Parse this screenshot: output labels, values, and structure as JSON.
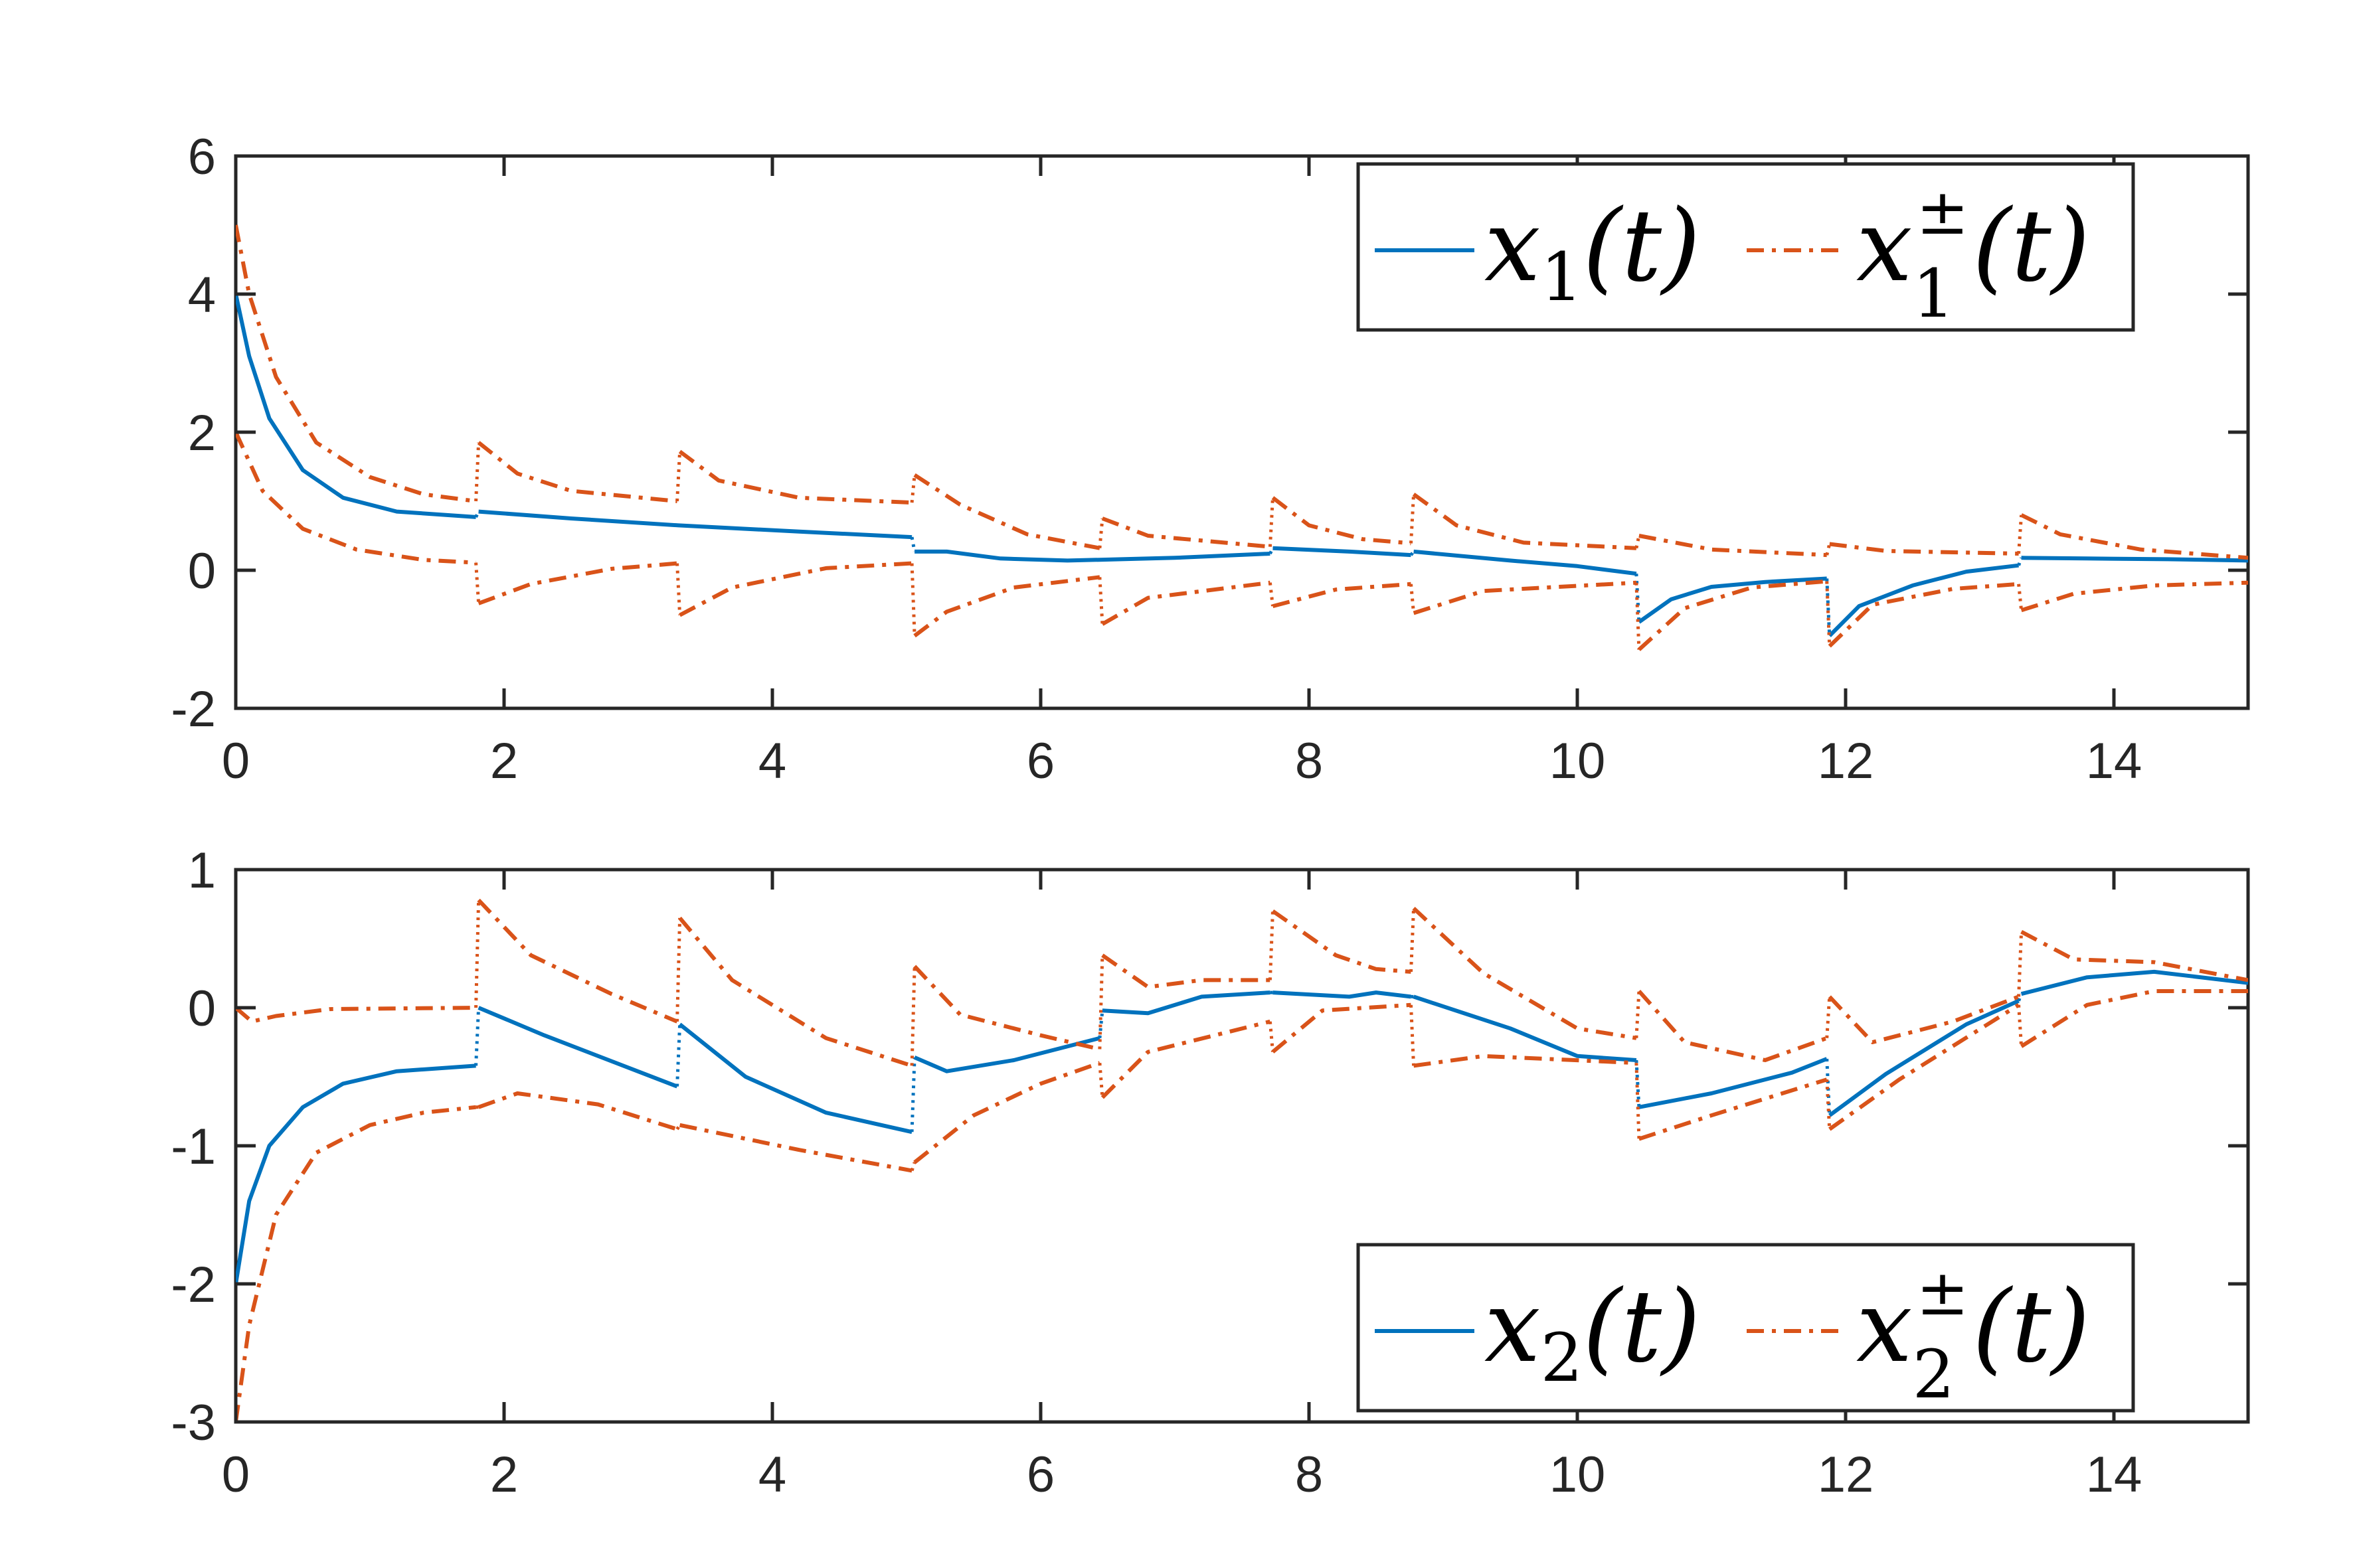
{
  "colors": {
    "state": "#0072BD",
    "bounds": "#D95319",
    "axes": "#262626",
    "background": "#ffffff"
  },
  "chart_data": [
    {
      "type": "line",
      "xlim": [
        0,
        15
      ],
      "ylim": [
        -2,
        6
      ],
      "xticks": [
        "0",
        "2",
        "4",
        "6",
        "8",
        "10",
        "12",
        "14"
      ],
      "yticks": [
        "-2",
        "0",
        "2",
        "4",
        "6"
      ],
      "legend": {
        "position": "top-right",
        "entries": [
          {
            "base": "x",
            "sub": "1",
            "sup": "",
            "arg": "(t)",
            "style": "solid"
          },
          {
            "base": "x",
            "sub": "1",
            "sup": "±",
            "arg": "(t)",
            "style": "dashdot"
          }
        ]
      },
      "jump_times": [
        1.8,
        3.3,
        5.05,
        6.45,
        7.72,
        8.77,
        10.45,
        11.87,
        13.3
      ],
      "series": [
        {
          "role": "state",
          "style": "solid",
          "points": [
            [
              0,
              4
            ],
            [
              0.1,
              3.1
            ],
            [
              0.25,
              2.2
            ],
            [
              0.5,
              1.45
            ],
            [
              0.8,
              1.05
            ],
            [
              1.2,
              0.85
            ],
            [
              1.79,
              0.77
            ],
            [
              1.81,
              0.85
            ],
            [
              2.5,
              0.75
            ],
            [
              3.3,
              0.65
            ],
            [
              4.2,
              0.56
            ],
            [
              5.04,
              0.48
            ],
            [
              5.06,
              0.27
            ],
            [
              5.3,
              0.27
            ],
            [
              5.7,
              0.17
            ],
            [
              6.2,
              0.14
            ],
            [
              6.6,
              0.16
            ],
            [
              7.0,
              0.18
            ],
            [
              7.71,
              0.24
            ],
            [
              7.73,
              0.32
            ],
            [
              8.3,
              0.27
            ],
            [
              8.76,
              0.22
            ],
            [
              8.78,
              0.27
            ],
            [
              9.5,
              0.14
            ],
            [
              10.0,
              0.06
            ],
            [
              10.44,
              -0.05
            ],
            [
              10.46,
              -0.75
            ],
            [
              10.7,
              -0.42
            ],
            [
              11.0,
              -0.24
            ],
            [
              11.4,
              -0.17
            ],
            [
              11.86,
              -0.12
            ],
            [
              11.88,
              -0.95
            ],
            [
              12.1,
              -0.52
            ],
            [
              12.5,
              -0.22
            ],
            [
              12.9,
              -0.02
            ],
            [
              13.29,
              0.07
            ],
            [
              13.31,
              0.18
            ],
            [
              13.8,
              0.17
            ],
            [
              14.4,
              0.16
            ],
            [
              15,
              0.14
            ]
          ]
        },
        {
          "role": "upper",
          "style": "dashdot",
          "points": [
            [
              0,
              5
            ],
            [
              0.1,
              4.0
            ],
            [
              0.3,
              2.8
            ],
            [
              0.6,
              1.85
            ],
            [
              1.0,
              1.35
            ],
            [
              1.4,
              1.1
            ],
            [
              1.79,
              1.0
            ],
            [
              1.81,
              1.85
            ],
            [
              2.1,
              1.4
            ],
            [
              2.5,
              1.15
            ],
            [
              3.29,
              1.0
            ],
            [
              3.31,
              1.72
            ],
            [
              3.6,
              1.3
            ],
            [
              4.2,
              1.05
            ],
            [
              5.04,
              0.98
            ],
            [
              5.06,
              1.38
            ],
            [
              5.4,
              0.95
            ],
            [
              5.9,
              0.52
            ],
            [
              6.44,
              0.32
            ],
            [
              6.46,
              0.75
            ],
            [
              6.8,
              0.5
            ],
            [
              7.71,
              0.34
            ],
            [
              7.73,
              1.05
            ],
            [
              8.0,
              0.65
            ],
            [
              8.4,
              0.45
            ],
            [
              8.76,
              0.39
            ],
            [
              8.78,
              1.1
            ],
            [
              9.1,
              0.65
            ],
            [
              9.6,
              0.4
            ],
            [
              10.44,
              0.32
            ],
            [
              10.46,
              0.5
            ],
            [
              11.0,
              0.3
            ],
            [
              11.86,
              0.22
            ],
            [
              11.88,
              0.38
            ],
            [
              12.3,
              0.28
            ],
            [
              13.29,
              0.24
            ],
            [
              13.31,
              0.8
            ],
            [
              13.6,
              0.52
            ],
            [
              14.2,
              0.3
            ],
            [
              15,
              0.18
            ]
          ]
        },
        {
          "role": "lower",
          "style": "dashdot",
          "points": [
            [
              0,
              2
            ],
            [
              0.2,
              1.15
            ],
            [
              0.5,
              0.6
            ],
            [
              0.9,
              0.3
            ],
            [
              1.4,
              0.15
            ],
            [
              1.79,
              0.11
            ],
            [
              1.81,
              -0.48
            ],
            [
              2.2,
              -0.2
            ],
            [
              2.8,
              0.02
            ],
            [
              3.29,
              0.1
            ],
            [
              3.31,
              -0.65
            ],
            [
              3.7,
              -0.25
            ],
            [
              4.4,
              0.03
            ],
            [
              5.04,
              0.1
            ],
            [
              5.06,
              -0.95
            ],
            [
              5.3,
              -0.6
            ],
            [
              5.8,
              -0.25
            ],
            [
              6.44,
              -0.1
            ],
            [
              6.46,
              -0.78
            ],
            [
              6.8,
              -0.4
            ],
            [
              7.71,
              -0.18
            ],
            [
              7.73,
              -0.52
            ],
            [
              8.2,
              -0.28
            ],
            [
              8.76,
              -0.2
            ],
            [
              8.78,
              -0.62
            ],
            [
              9.3,
              -0.3
            ],
            [
              10.44,
              -0.18
            ],
            [
              10.46,
              -1.15
            ],
            [
              10.8,
              -0.55
            ],
            [
              11.3,
              -0.25
            ],
            [
              11.86,
              -0.16
            ],
            [
              11.88,
              -1.1
            ],
            [
              12.2,
              -0.5
            ],
            [
              12.8,
              -0.27
            ],
            [
              13.29,
              -0.2
            ],
            [
              13.31,
              -0.58
            ],
            [
              13.7,
              -0.34
            ],
            [
              14.3,
              -0.22
            ],
            [
              15,
              -0.18
            ]
          ]
        }
      ]
    },
    {
      "type": "line",
      "xlim": [
        0,
        15
      ],
      "ylim": [
        -3,
        1
      ],
      "xticks": [
        "0",
        "2",
        "4",
        "6",
        "8",
        "10",
        "12",
        "14"
      ],
      "yticks": [
        "-3",
        "-2",
        "-1",
        "0",
        "1"
      ],
      "legend": {
        "position": "bottom-right",
        "entries": [
          {
            "base": "x",
            "sub": "2",
            "sup": "",
            "arg": "(t)",
            "style": "solid"
          },
          {
            "base": "x",
            "sub": "2",
            "sup": "±",
            "arg": "(t)",
            "style": "dashdot"
          }
        ]
      },
      "jump_times": [
        1.8,
        3.3,
        5.05,
        6.45,
        7.72,
        8.77,
        10.45,
        11.87,
        13.3
      ],
      "series": [
        {
          "role": "state",
          "style": "solid",
          "points": [
            [
              0,
              -2
            ],
            [
              0.1,
              -1.4
            ],
            [
              0.25,
              -1.0
            ],
            [
              0.5,
              -0.72
            ],
            [
              0.8,
              -0.55
            ],
            [
              1.2,
              -0.46
            ],
            [
              1.79,
              -0.42
            ],
            [
              1.81,
              0.0
            ],
            [
              2.3,
              -0.2
            ],
            [
              3.29,
              -0.57
            ],
            [
              3.31,
              -0.12
            ],
            [
              3.8,
              -0.5
            ],
            [
              4.4,
              -0.76
            ],
            [
              5.04,
              -0.9
            ],
            [
              5.06,
              -0.36
            ],
            [
              5.3,
              -0.46
            ],
            [
              5.8,
              -0.38
            ],
            [
              6.44,
              -0.22
            ],
            [
              6.46,
              -0.02
            ],
            [
              6.8,
              -0.04
            ],
            [
              7.2,
              0.08
            ],
            [
              7.71,
              0.11
            ],
            [
              7.73,
              0.11
            ],
            [
              8.3,
              0.08
            ],
            [
              8.5,
              0.11
            ],
            [
              8.76,
              0.08
            ],
            [
              8.78,
              0.08
            ],
            [
              9.5,
              -0.15
            ],
            [
              10.0,
              -0.35
            ],
            [
              10.44,
              -0.38
            ],
            [
              10.46,
              -0.72
            ],
            [
              11.0,
              -0.62
            ],
            [
              11.6,
              -0.47
            ],
            [
              11.86,
              -0.37
            ],
            [
              11.88,
              -0.78
            ],
            [
              12.3,
              -0.48
            ],
            [
              12.9,
              -0.12
            ],
            [
              13.29,
              0.05
            ],
            [
              13.31,
              0.1
            ],
            [
              13.8,
              0.22
            ],
            [
              14.3,
              0.26
            ],
            [
              15,
              0.18
            ]
          ]
        },
        {
          "role": "upper",
          "style": "dashdot",
          "points": [
            [
              0,
              0
            ],
            [
              0.12,
              -0.1
            ],
            [
              0.3,
              -0.06
            ],
            [
              0.7,
              -0.01
            ],
            [
              1.79,
              0.0
            ],
            [
              1.81,
              0.78
            ],
            [
              2.2,
              0.38
            ],
            [
              2.8,
              0.1
            ],
            [
              3.29,
              -0.1
            ],
            [
              3.31,
              0.65
            ],
            [
              3.7,
              0.2
            ],
            [
              4.4,
              -0.22
            ],
            [
              5.04,
              -0.42
            ],
            [
              5.06,
              0.3
            ],
            [
              5.4,
              -0.05
            ],
            [
              6.0,
              -0.2
            ],
            [
              6.44,
              -0.3
            ],
            [
              6.46,
              0.38
            ],
            [
              6.8,
              0.15
            ],
            [
              7.2,
              0.2
            ],
            [
              7.71,
              0.2
            ],
            [
              7.73,
              0.7
            ],
            [
              8.2,
              0.38
            ],
            [
              8.5,
              0.28
            ],
            [
              8.76,
              0.26
            ],
            [
              8.78,
              0.72
            ],
            [
              9.3,
              0.25
            ],
            [
              10.0,
              -0.15
            ],
            [
              10.44,
              -0.22
            ],
            [
              10.46,
              0.12
            ],
            [
              10.8,
              -0.25
            ],
            [
              11.4,
              -0.38
            ],
            [
              11.86,
              -0.22
            ],
            [
              11.88,
              0.08
            ],
            [
              12.2,
              -0.25
            ],
            [
              12.8,
              -0.1
            ],
            [
              13.29,
              0.08
            ],
            [
              13.31,
              0.55
            ],
            [
              13.7,
              0.35
            ],
            [
              14.3,
              0.33
            ],
            [
              15,
              0.2
            ]
          ]
        },
        {
          "role": "lower",
          "style": "dashdot",
          "points": [
            [
              0,
              -3
            ],
            [
              0.1,
              -2.3
            ],
            [
              0.3,
              -1.5
            ],
            [
              0.6,
              -1.05
            ],
            [
              1.0,
              -0.85
            ],
            [
              1.4,
              -0.76
            ],
            [
              1.79,
              -0.72
            ],
            [
              1.81,
              -0.72
            ],
            [
              2.1,
              -0.62
            ],
            [
              2.7,
              -0.7
            ],
            [
              3.29,
              -0.88
            ],
            [
              3.31,
              -0.85
            ],
            [
              4.2,
              -1.03
            ],
            [
              5.04,
              -1.18
            ],
            [
              5.06,
              -1.12
            ],
            [
              5.5,
              -0.78
            ],
            [
              6.0,
              -0.55
            ],
            [
              6.44,
              -0.4
            ],
            [
              6.46,
              -0.65
            ],
            [
              6.8,
              -0.32
            ],
            [
              7.71,
              -0.1
            ],
            [
              7.73,
              -0.32
            ],
            [
              8.1,
              -0.02
            ],
            [
              8.76,
              0.02
            ],
            [
              8.78,
              -0.42
            ],
            [
              9.3,
              -0.35
            ],
            [
              10.44,
              -0.4
            ],
            [
              10.46,
              -0.95
            ],
            [
              11.0,
              -0.78
            ],
            [
              11.86,
              -0.52
            ],
            [
              11.88,
              -0.88
            ],
            [
              12.4,
              -0.52
            ],
            [
              13.29,
              0.02
            ],
            [
              13.31,
              -0.28
            ],
            [
              13.8,
              0.02
            ],
            [
              14.3,
              0.12
            ],
            [
              15,
              0.12
            ]
          ]
        }
      ]
    }
  ]
}
